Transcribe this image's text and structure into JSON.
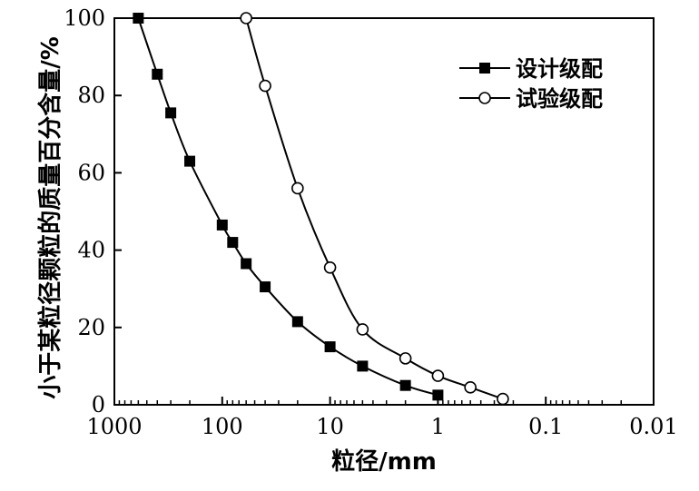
{
  "chart_data": {
    "type": "line",
    "title": "",
    "xlabel": "粒径/mm",
    "ylabel": "小于某粒径颗粒的质量百分含量/%",
    "x_scale": "log",
    "x_reversed": true,
    "xlim": [
      1000,
      0.01
    ],
    "ylim": [
      0,
      100
    ],
    "x_ticks": [
      1000,
      100,
      10,
      1,
      0.1,
      0.01
    ],
    "x_tick_labels": [
      "1000",
      "100",
      "10",
      "1",
      "0.1",
      "0.01"
    ],
    "y_ticks": [
      0,
      20,
      40,
      60,
      80,
      100
    ],
    "y_tick_labels": [
      "0",
      "20",
      "40",
      "60",
      "80",
      "100"
    ],
    "grid": false,
    "legend_position": "top-right",
    "series": [
      {
        "name": "设计级配",
        "marker": "filled-square",
        "color": "#000000",
        "points": [
          [
            600,
            100
          ],
          [
            400,
            85.5
          ],
          [
            300,
            75.5
          ],
          [
            200,
            63
          ],
          [
            100,
            46.5
          ],
          [
            80,
            42
          ],
          [
            60,
            36.5
          ],
          [
            40,
            30.5
          ],
          [
            20,
            21.5
          ],
          [
            10,
            15
          ],
          [
            5,
            10
          ],
          [
            2,
            5
          ],
          [
            1,
            2.5
          ]
        ]
      },
      {
        "name": "试验级配",
        "marker": "open-circle",
        "color": "#000000",
        "points": [
          [
            60,
            100
          ],
          [
            40,
            82.5
          ],
          [
            20,
            56
          ],
          [
            10,
            35.5
          ],
          [
            5,
            19.5
          ],
          [
            2,
            12
          ],
          [
            1,
            7.5
          ],
          [
            0.5,
            4.5
          ],
          [
            0.25,
            1.5
          ]
        ]
      }
    ]
  }
}
